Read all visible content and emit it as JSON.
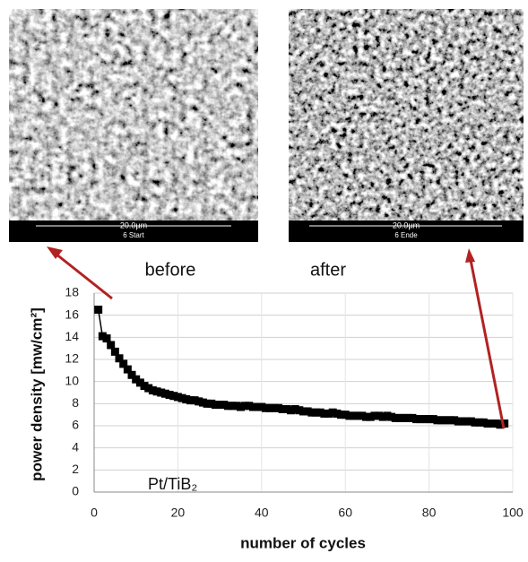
{
  "images": [
    {
      "scale": "20.0µm",
      "label": "6 Start",
      "caption": "before"
    },
    {
      "scale": "20.0µm",
      "label": "6 Ende",
      "caption": "after"
    }
  ],
  "chart_data": {
    "type": "line",
    "xlabel": "number of cycles",
    "ylabel": "power density [mw/cm²]",
    "annotation": "Pt/TiB₂",
    "x": [
      1,
      2,
      3,
      4,
      5,
      6,
      7,
      8,
      9,
      10,
      11,
      12,
      13,
      14,
      15,
      16,
      17,
      18,
      19,
      20,
      21,
      22,
      23,
      24,
      25,
      26,
      27,
      28,
      29,
      30,
      31,
      32,
      33,
      34,
      35,
      36,
      37,
      38,
      39,
      40,
      41,
      42,
      43,
      44,
      45,
      46,
      47,
      48,
      49,
      50,
      51,
      52,
      53,
      54,
      55,
      56,
      57,
      58,
      59,
      60,
      61,
      62,
      63,
      64,
      65,
      66,
      67,
      68,
      69,
      70,
      71,
      72,
      73,
      74,
      75,
      76,
      77,
      78,
      79,
      80,
      81,
      82,
      83,
      84,
      85,
      86,
      87,
      88,
      89,
      90,
      91,
      92,
      93,
      94,
      95,
      96,
      97,
      98
    ],
    "series": [
      {
        "color": "#000000",
        "values": [
          16.5,
          14.1,
          13.9,
          13.3,
          12.7,
          12.1,
          11.6,
          11.1,
          10.6,
          10.2,
          9.9,
          9.6,
          9.4,
          9.2,
          9.1,
          9.0,
          8.9,
          8.8,
          8.7,
          8.6,
          8.5,
          8.4,
          8.3,
          8.3,
          8.2,
          8.1,
          8.0,
          8.0,
          7.9,
          7.9,
          7.9,
          7.8,
          7.8,
          7.8,
          7.7,
          7.8,
          7.8,
          7.7,
          7.7,
          7.7,
          7.6,
          7.6,
          7.6,
          7.6,
          7.5,
          7.5,
          7.4,
          7.5,
          7.4,
          7.3,
          7.3,
          7.2,
          7.2,
          7.2,
          7.1,
          7.1,
          7.2,
          7.1,
          7.0,
          7.0,
          6.9,
          6.9,
          6.9,
          6.9,
          6.8,
          6.8,
          6.9,
          6.9,
          6.8,
          6.9,
          6.8,
          6.7,
          6.7,
          6.7,
          6.7,
          6.7,
          6.6,
          6.6,
          6.6,
          6.6,
          6.6,
          6.5,
          6.5,
          6.5,
          6.5,
          6.5,
          6.4,
          6.4,
          6.4,
          6.4,
          6.3,
          6.3,
          6.3,
          6.2,
          6.2,
          6.2,
          6.1,
          6.2
        ]
      }
    ],
    "xlim": [
      0,
      100
    ],
    "xticks": [
      0,
      20,
      40,
      60,
      80,
      100
    ],
    "ylim": [
      0,
      18
    ],
    "yticks": [
      0,
      2,
      4,
      6,
      8,
      10,
      12,
      14,
      16,
      18
    ],
    "grid": true
  }
}
